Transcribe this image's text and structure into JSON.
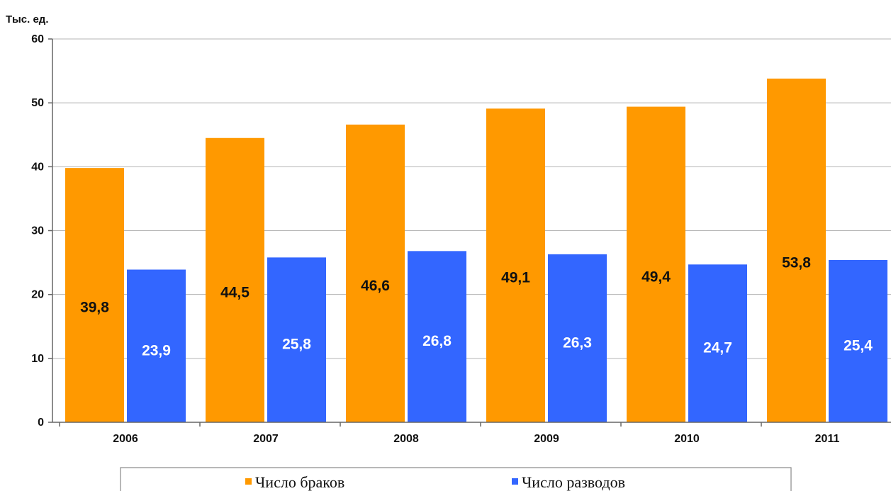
{
  "chart_data": {
    "type": "bar",
    "unit_label": "Тыс. ед.",
    "categories": [
      "2006",
      "2007",
      "2008",
      "2009",
      "2010",
      "2011"
    ],
    "series": [
      {
        "name": "Число браков",
        "values": [
          39.8,
          44.5,
          46.6,
          49.1,
          49.4,
          53.8
        ],
        "labels": [
          "39,8",
          "44,5",
          "46,6",
          "49,1",
          "49,4",
          "53,8"
        ],
        "color": "#FF9900",
        "label_color": "#111111"
      },
      {
        "name": "Число разводов",
        "values": [
          23.9,
          25.8,
          26.8,
          26.3,
          24.7,
          25.4
        ],
        "labels": [
          "23,9",
          "25,8",
          "26,8",
          "26,3",
          "24,7",
          "25,4"
        ],
        "color": "#3366FF",
        "label_color": "#FFFFFF"
      }
    ],
    "yticks": [
      0,
      10,
      20,
      30,
      40,
      50,
      60
    ],
    "ylim": [
      0,
      60
    ],
    "grid": true,
    "legend_position": "bottom"
  }
}
